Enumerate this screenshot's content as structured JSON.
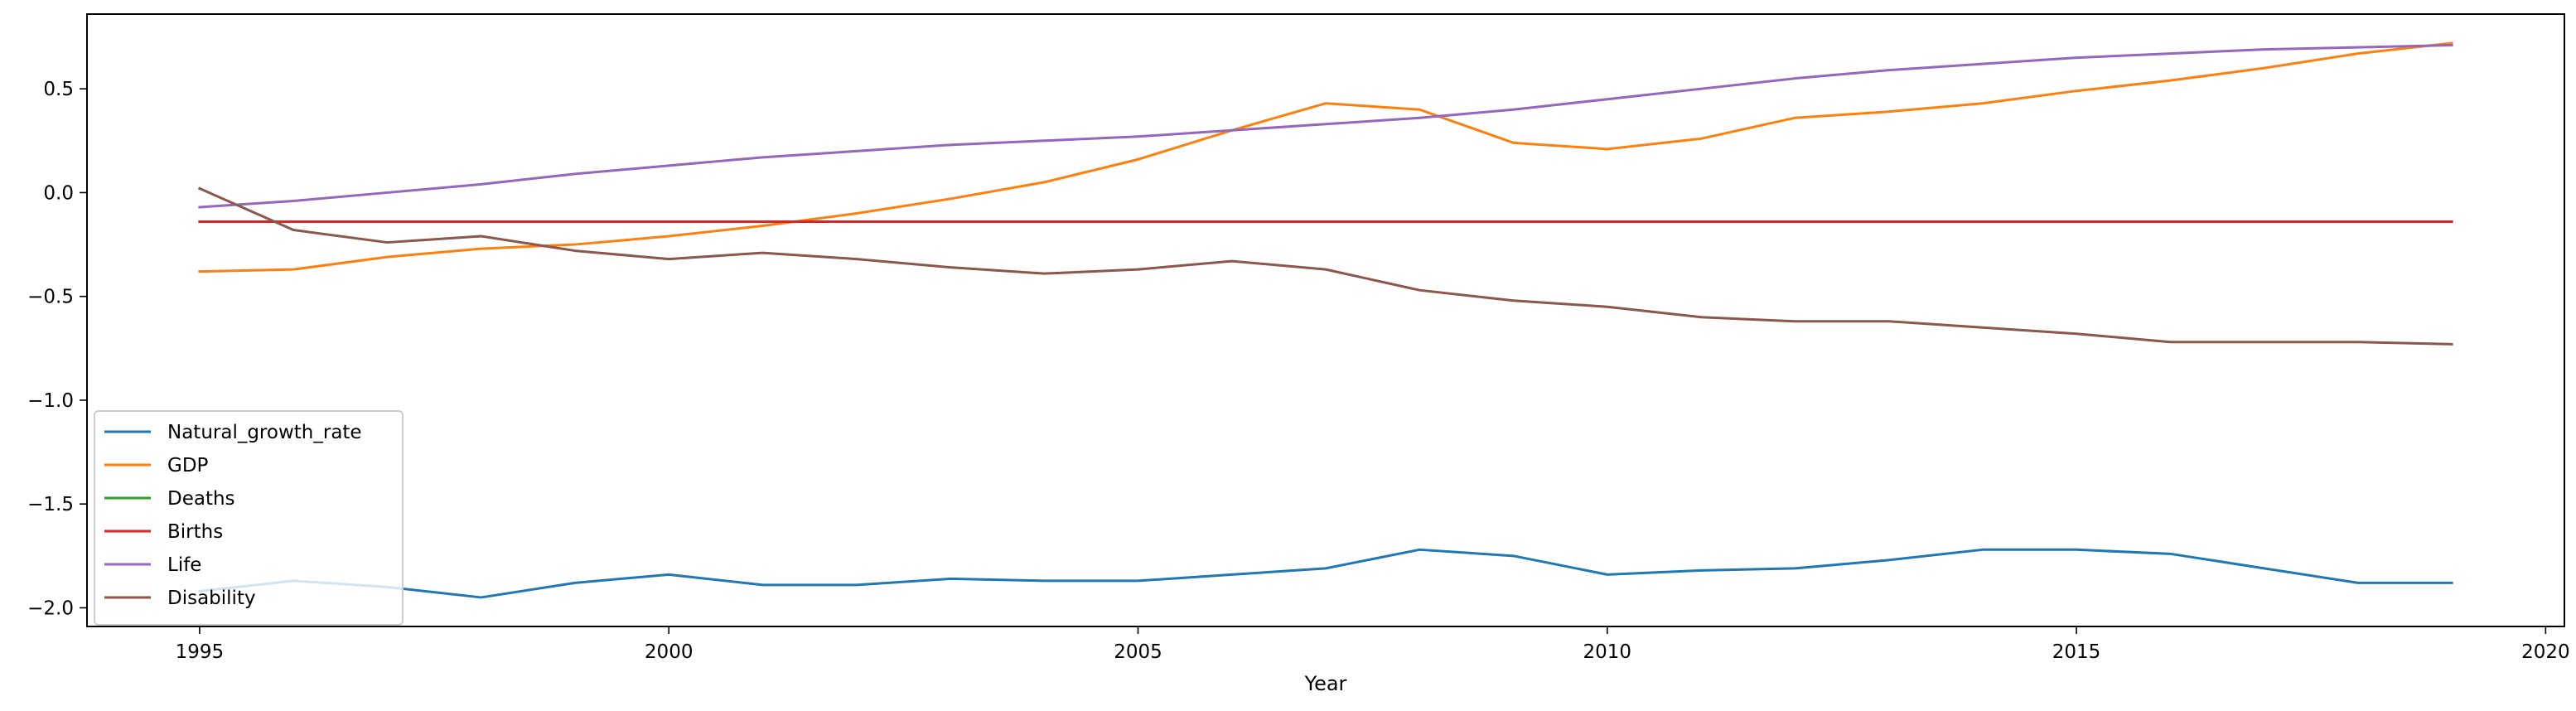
{
  "chart_data": {
    "type": "line",
    "title": "",
    "xlabel": "Year",
    "ylabel": "",
    "xlim": [
      1993.8,
      2020.2
    ],
    "ylim": [
      -2.09,
      0.86
    ],
    "xticks": [
      1995,
      2000,
      2005,
      2010,
      2015,
      2020
    ],
    "yticks": [
      0.5,
      0.0,
      -0.5,
      -1.0,
      -1.5,
      -2.0
    ],
    "xtick_labels": [
      "1995",
      "2000",
      "2005",
      "2010",
      "2015",
      "2020"
    ],
    "ytick_labels": [
      "0.5",
      "0.0",
      "−0.5",
      "−1.0",
      "−1.5",
      "−2.0"
    ],
    "grid": false,
    "legend_position": "lower-left",
    "x": [
      1995,
      1996,
      1997,
      1998,
      1999,
      2000,
      2001,
      2002,
      2003,
      2004,
      2005,
      2006,
      2007,
      2008,
      2009,
      2010,
      2011,
      2012,
      2013,
      2014,
      2015,
      2016,
      2017,
      2018,
      2019
    ],
    "series": [
      {
        "name": "Natural_growth_rate",
        "color": "#1f77b4",
        "values": [
          -1.92,
          -1.87,
          -1.9,
          -1.95,
          -1.88,
          -1.84,
          -1.89,
          -1.89,
          -1.86,
          -1.87,
          -1.87,
          -1.84,
          -1.81,
          -1.72,
          -1.75,
          -1.84,
          -1.82,
          -1.81,
          -1.77,
          -1.72,
          -1.72,
          -1.74,
          -1.81,
          -1.88,
          -1.88
        ]
      },
      {
        "name": "GDP",
        "color": "#ff7f0e",
        "values": [
          -0.38,
          -0.37,
          -0.31,
          -0.27,
          -0.25,
          -0.21,
          -0.16,
          -0.1,
          -0.03,
          0.05,
          0.16,
          0.3,
          0.43,
          0.4,
          0.24,
          0.21,
          0.26,
          0.36,
          0.39,
          0.43,
          0.49,
          0.54,
          0.6,
          0.67,
          0.72
        ]
      },
      {
        "name": "Deaths",
        "color": "#2ca02c",
        "values": [
          -0.14,
          -0.14,
          -0.14,
          -0.14,
          -0.14,
          -0.14,
          -0.14,
          -0.14,
          -0.14,
          -0.14,
          -0.14,
          -0.14,
          -0.14,
          -0.14,
          -0.14,
          -0.14,
          -0.14,
          -0.14,
          -0.14,
          -0.14,
          -0.14,
          -0.14,
          -0.14,
          -0.14,
          -0.14
        ]
      },
      {
        "name": "Births",
        "color": "#d62728",
        "values": [
          -0.14,
          -0.14,
          -0.14,
          -0.14,
          -0.14,
          -0.14,
          -0.14,
          -0.14,
          -0.14,
          -0.14,
          -0.14,
          -0.14,
          -0.14,
          -0.14,
          -0.14,
          -0.14,
          -0.14,
          -0.14,
          -0.14,
          -0.14,
          -0.14,
          -0.14,
          -0.14,
          -0.14,
          -0.14
        ]
      },
      {
        "name": "Life",
        "color": "#9467bd",
        "values": [
          -0.07,
          -0.04,
          0.0,
          0.04,
          0.09,
          0.13,
          0.17,
          0.2,
          0.23,
          0.25,
          0.27,
          0.3,
          0.33,
          0.36,
          0.4,
          0.45,
          0.5,
          0.55,
          0.59,
          0.62,
          0.65,
          0.67,
          0.69,
          0.7,
          0.71
        ]
      },
      {
        "name": "Disability",
        "color": "#8c564b",
        "values": [
          0.02,
          -0.18,
          -0.24,
          -0.21,
          -0.28,
          -0.32,
          -0.29,
          -0.32,
          -0.36,
          -0.39,
          -0.37,
          -0.33,
          -0.37,
          -0.47,
          -0.52,
          -0.55,
          -0.6,
          -0.62,
          -0.62,
          -0.65,
          -0.68,
          -0.72,
          -0.72,
          -0.72,
          -0.73
        ]
      }
    ]
  }
}
